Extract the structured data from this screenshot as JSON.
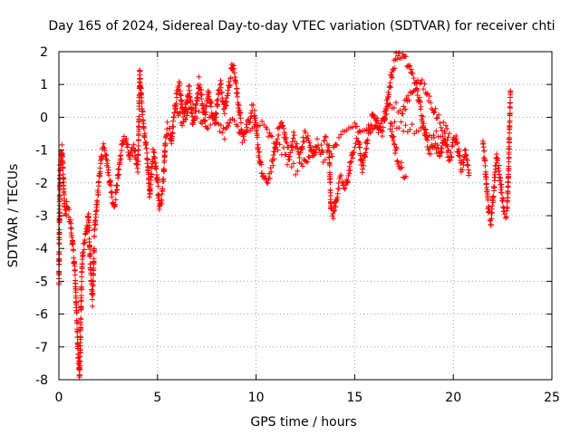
{
  "chart_data": {
    "type": "scatter",
    "title": "Day 165 of 2024, Sidereal Day-to-day VTEC variation (SDTVAR) for receiver chti",
    "xlabel": "GPS time / hours",
    "ylabel": "SDTVAR / TECUs",
    "xlim": [
      0,
      25
    ],
    "ylim": [
      -8,
      2
    ],
    "xticks": [
      "0",
      "5",
      "10",
      "15",
      "20",
      "25"
    ],
    "yticks": [
      "2",
      "1",
      "0",
      "-1",
      "-2",
      "-3",
      "-4",
      "-5",
      "-6",
      "-7",
      "-8"
    ],
    "grid": true,
    "marker": "+",
    "color": "#ff0000",
    "series": [
      {
        "name": "SDTVAR",
        "trace": [
          [
            0.0,
            -5.1
          ],
          [
            0.05,
            -1.8
          ],
          [
            0.1,
            -1.2
          ],
          [
            0.15,
            -0.9
          ],
          [
            0.2,
            -1.5
          ],
          [
            0.25,
            -2.2
          ],
          [
            0.3,
            -2.8
          ],
          [
            0.35,
            -3.0
          ],
          [
            0.4,
            -2.7
          ],
          [
            0.5,
            -2.9
          ],
          [
            0.6,
            -3.3
          ],
          [
            0.7,
            -3.9
          ],
          [
            0.8,
            -4.6
          ],
          [
            0.85,
            -5.2
          ],
          [
            0.9,
            -6.0
          ],
          [
            0.95,
            -6.8
          ],
          [
            1.0,
            -7.5
          ],
          [
            1.05,
            -7.9
          ],
          [
            1.1,
            -6.5
          ],
          [
            1.15,
            -5.0
          ],
          [
            1.2,
            -4.2
          ],
          [
            1.3,
            -3.8
          ],
          [
            1.4,
            -3.5
          ],
          [
            1.5,
            -3.0
          ],
          [
            1.6,
            -4.5
          ],
          [
            1.7,
            -5.6
          ],
          [
            1.75,
            -4.8
          ],
          [
            1.8,
            -3.6
          ],
          [
            1.9,
            -2.8
          ],
          [
            2.0,
            -2.2
          ],
          [
            2.1,
            -1.5
          ],
          [
            2.2,
            -1.0
          ],
          [
            2.3,
            -0.8
          ],
          [
            2.4,
            -1.2
          ],
          [
            2.5,
            -1.6
          ],
          [
            2.6,
            -2.0
          ],
          [
            2.7,
            -2.4
          ],
          [
            2.8,
            -2.7
          ],
          [
            2.9,
            -2.3
          ],
          [
            3.0,
            -1.8
          ],
          [
            3.1,
            -1.3
          ],
          [
            3.2,
            -0.9
          ],
          [
            3.3,
            -0.6
          ],
          [
            3.4,
            -0.7
          ],
          [
            3.5,
            -1.0
          ],
          [
            3.6,
            -1.3
          ],
          [
            3.7,
            -1.1
          ],
          [
            3.8,
            -0.9
          ],
          [
            3.9,
            -1.2
          ],
          [
            4.0,
            -1.5
          ],
          [
            4.05,
            -0.5
          ],
          [
            4.1,
            1.4
          ],
          [
            4.15,
            0.9
          ],
          [
            4.2,
            0.4
          ],
          [
            4.3,
            -0.3
          ],
          [
            4.4,
            -0.8
          ],
          [
            4.5,
            -1.4
          ],
          [
            4.6,
            -2.4
          ],
          [
            4.7,
            -1.6
          ],
          [
            4.8,
            -1.0
          ],
          [
            4.9,
            -1.5
          ],
          [
            5.0,
            -2.0
          ],
          [
            5.1,
            -2.8
          ],
          [
            5.2,
            -2.6
          ],
          [
            5.3,
            -1.9
          ],
          [
            5.4,
            -0.7
          ],
          [
            5.5,
            -0.3
          ],
          [
            5.6,
            -0.4
          ],
          [
            5.7,
            -0.8
          ],
          [
            5.8,
            -0.2
          ],
          [
            5.9,
            0.3
          ],
          [
            6.0,
            0.8
          ],
          [
            6.1,
            1.0
          ],
          [
            6.2,
            0.5
          ],
          [
            6.3,
            0.0
          ],
          [
            6.4,
            0.2
          ],
          [
            6.5,
            0.6
          ],
          [
            6.6,
            0.9
          ],
          [
            6.7,
            0.4
          ],
          [
            6.8,
            -0.2
          ],
          [
            6.9,
            0.1
          ],
          [
            7.0,
            0.5
          ],
          [
            7.1,
            1.1
          ],
          [
            7.2,
            0.8
          ],
          [
            7.3,
            0.3
          ],
          [
            7.4,
            0.0
          ],
          [
            7.5,
            0.4
          ],
          [
            7.6,
            0.8
          ],
          [
            7.7,
            0.5
          ],
          [
            7.8,
            0.1
          ],
          [
            7.9,
            -0.2
          ],
          [
            8.0,
            0.3
          ],
          [
            8.1,
            0.8
          ],
          [
            8.2,
            1.0
          ],
          [
            8.3,
            0.6
          ],
          [
            8.4,
            0.2
          ],
          [
            8.5,
            0.5
          ],
          [
            8.6,
            0.9
          ],
          [
            8.7,
            1.2
          ],
          [
            8.8,
            1.6
          ],
          [
            8.9,
            1.3
          ],
          [
            9.0,
            0.9
          ],
          [
            9.1,
            0.4
          ],
          [
            9.2,
            0.0
          ],
          [
            9.3,
            -0.4
          ],
          [
            9.4,
            -0.5
          ],
          [
            9.5,
            -0.3
          ],
          [
            9.6,
            -0.1
          ],
          [
            9.7,
            0.0
          ],
          [
            9.8,
            0.3
          ],
          [
            9.9,
            0.2
          ],
          [
            10.0,
            -0.4
          ],
          [
            10.1,
            -0.9
          ],
          [
            10.2,
            -1.4
          ],
          [
            10.3,
            -1.7
          ],
          [
            10.4,
            -1.9
          ],
          [
            10.5,
            -2.0
          ],
          [
            10.6,
            -1.9
          ],
          [
            10.7,
            -1.7
          ],
          [
            10.8,
            -1.5
          ],
          [
            10.9,
            -1.2
          ],
          [
            11.0,
            -0.8
          ],
          [
            11.1,
            -0.5
          ],
          [
            11.2,
            -0.3
          ],
          [
            11.3,
            -0.2
          ],
          [
            11.4,
            -0.4
          ],
          [
            11.5,
            -0.7
          ],
          [
            11.6,
            -0.9
          ],
          [
            11.7,
            -1.1
          ],
          [
            11.8,
            -0.9
          ],
          [
            11.9,
            -0.6
          ],
          [
            12.0,
            -0.8
          ],
          [
            12.1,
            -1.0
          ],
          [
            12.2,
            -1.2
          ],
          [
            12.3,
            -1.0
          ],
          [
            12.4,
            -0.7
          ],
          [
            12.5,
            -0.5
          ],
          [
            12.6,
            -0.6
          ],
          [
            12.7,
            -0.8
          ],
          [
            12.8,
            -1.1
          ],
          [
            12.9,
            -1.2
          ],
          [
            13.0,
            -1.0
          ],
          [
            13.1,
            -0.8
          ],
          [
            13.2,
            -0.9
          ],
          [
            13.3,
            -1.0
          ],
          [
            13.4,
            -0.9
          ],
          [
            13.5,
            -0.7
          ],
          [
            13.6,
            -0.8
          ],
          [
            13.7,
            -1.0
          ],
          [
            13.8,
            -2.8
          ],
          [
            13.9,
            -3.0
          ],
          [
            14.0,
            -2.7
          ],
          [
            14.1,
            -2.4
          ],
          [
            14.2,
            -2.1
          ],
          [
            14.3,
            -1.9
          ],
          [
            14.4,
            -2.0
          ],
          [
            14.5,
            -2.2
          ],
          [
            14.6,
            -2.0
          ],
          [
            14.7,
            -1.7
          ],
          [
            14.8,
            -1.4
          ],
          [
            14.9,
            -1.1
          ],
          [
            15.0,
            -0.9
          ],
          [
            15.1,
            -0.8
          ],
          [
            15.2,
            -0.7
          ],
          [
            15.3,
            -1.2
          ],
          [
            15.4,
            -1.6
          ],
          [
            15.5,
            -1.2
          ],
          [
            15.6,
            -0.8
          ],
          [
            15.7,
            -0.5
          ],
          [
            15.8,
            -0.3
          ],
          [
            15.9,
            0.0
          ],
          [
            16.0,
            0.2
          ],
          [
            16.1,
            0.0
          ],
          [
            16.2,
            -0.3
          ],
          [
            16.3,
            -0.5
          ],
          [
            16.4,
            -0.4
          ],
          [
            16.5,
            -0.1
          ],
          [
            16.6,
            0.3
          ],
          [
            16.7,
            0.7
          ],
          [
            16.8,
            1.0
          ],
          [
            16.9,
            1.4
          ],
          [
            17.0,
            1.6
          ],
          [
            17.1,
            1.8
          ],
          [
            17.2,
            1.9
          ],
          [
            17.3,
            1.95
          ],
          [
            17.4,
            1.9
          ],
          [
            17.5,
            1.8
          ],
          [
            17.6,
            1.7
          ],
          [
            17.7,
            1.6
          ],
          [
            17.8,
            1.5
          ],
          [
            17.9,
            1.3
          ],
          [
            18.0,
            1.2
          ],
          [
            18.1,
            1.0
          ],
          [
            18.2,
            0.7
          ],
          [
            18.3,
            0.4
          ],
          [
            18.4,
            0.1
          ],
          [
            18.5,
            -0.2
          ],
          [
            18.6,
            -0.5
          ],
          [
            18.7,
            -0.8
          ],
          [
            18.8,
            -1.0
          ],
          [
            18.9,
            -0.9
          ],
          [
            19.0,
            -0.7
          ],
          [
            19.1,
            -0.8
          ],
          [
            19.2,
            -1.0
          ],
          [
            19.3,
            -1.2
          ],
          [
            19.4,
            -0.9
          ],
          [
            19.5,
            -0.6
          ],
          [
            19.6,
            -0.7
          ],
          [
            19.7,
            -1.0
          ],
          [
            19.8,
            -1.3
          ],
          [
            19.9,
            -1.1
          ],
          [
            20.0,
            -0.8
          ],
          [
            20.1,
            -0.6
          ],
          [
            20.2,
            -0.9
          ],
          [
            20.3,
            -1.2
          ],
          [
            20.4,
            -1.6
          ],
          [
            20.5,
            -1.4
          ],
          [
            20.6,
            -1.0
          ],
          [
            20.7,
            -1.3
          ],
          [
            20.8,
            -1.7
          ]
        ],
        "trace2": [
          [
            6.0,
            0.2
          ],
          [
            6.3,
            -0.2
          ],
          [
            6.6,
            0.4
          ],
          [
            6.9,
            0.2
          ],
          [
            7.2,
            0.0
          ],
          [
            7.5,
            -0.3
          ],
          [
            7.8,
            0.0
          ],
          [
            8.1,
            -0.2
          ],
          [
            8.4,
            -0.5
          ],
          [
            8.7,
            -0.1
          ],
          [
            9.0,
            -0.3
          ],
          [
            9.3,
            -0.6
          ],
          [
            9.6,
            -0.5
          ],
          [
            10.2,
            -0.2
          ],
          [
            10.5,
            -0.4
          ],
          [
            10.8,
            -0.7
          ],
          [
            11.1,
            -0.9
          ],
          [
            11.4,
            -1.1
          ],
          [
            11.7,
            -1.4
          ],
          [
            12.0,
            -1.6
          ],
          [
            12.3,
            -1.5
          ],
          [
            12.6,
            -1.2
          ],
          [
            12.9,
            -0.9
          ],
          [
            13.2,
            -1.1
          ],
          [
            13.5,
            -1.3
          ],
          [
            13.8,
            -1.1
          ],
          [
            14.1,
            -0.8
          ],
          [
            14.4,
            -0.6
          ],
          [
            14.7,
            -0.4
          ],
          [
            15.0,
            -0.2
          ],
          [
            15.3,
            -0.5
          ],
          [
            15.6,
            -0.3
          ],
          [
            15.9,
            -0.5
          ],
          [
            16.2,
            -0.2
          ],
          [
            16.5,
            0.1
          ],
          [
            16.8,
            0.4
          ],
          [
            17.1,
            0.3
          ],
          [
            17.4,
            0.1
          ],
          [
            17.7,
            0.6
          ],
          [
            18.0,
            0.9
          ],
          [
            18.3,
            1.1
          ],
          [
            18.6,
            0.8
          ],
          [
            18.9,
            0.4
          ],
          [
            19.2,
            0.0
          ],
          [
            19.5,
            -0.3
          ],
          [
            19.8,
            -0.6
          ],
          [
            16.8,
            -0.2
          ],
          [
            17.0,
            -0.8
          ],
          [
            17.2,
            -1.3
          ],
          [
            17.4,
            -1.6
          ],
          [
            17.6,
            -1.8
          ]
        ],
        "trace3": [
          [
            21.5,
            -0.8
          ],
          [
            21.6,
            -1.4
          ],
          [
            21.7,
            -2.2
          ],
          [
            21.8,
            -2.9
          ],
          [
            21.9,
            -3.2
          ],
          [
            22.0,
            -2.6
          ],
          [
            22.1,
            -1.8
          ],
          [
            22.2,
            -1.2
          ],
          [
            22.3,
            -1.5
          ],
          [
            22.4,
            -2.0
          ],
          [
            22.5,
            -2.5
          ],
          [
            22.6,
            -2.9
          ],
          [
            22.7,
            -3.0
          ],
          [
            22.75,
            -2.6
          ],
          [
            22.8,
            -1.7
          ],
          [
            22.85,
            -0.3
          ],
          [
            22.9,
            0.8
          ]
        ]
      }
    ]
  }
}
